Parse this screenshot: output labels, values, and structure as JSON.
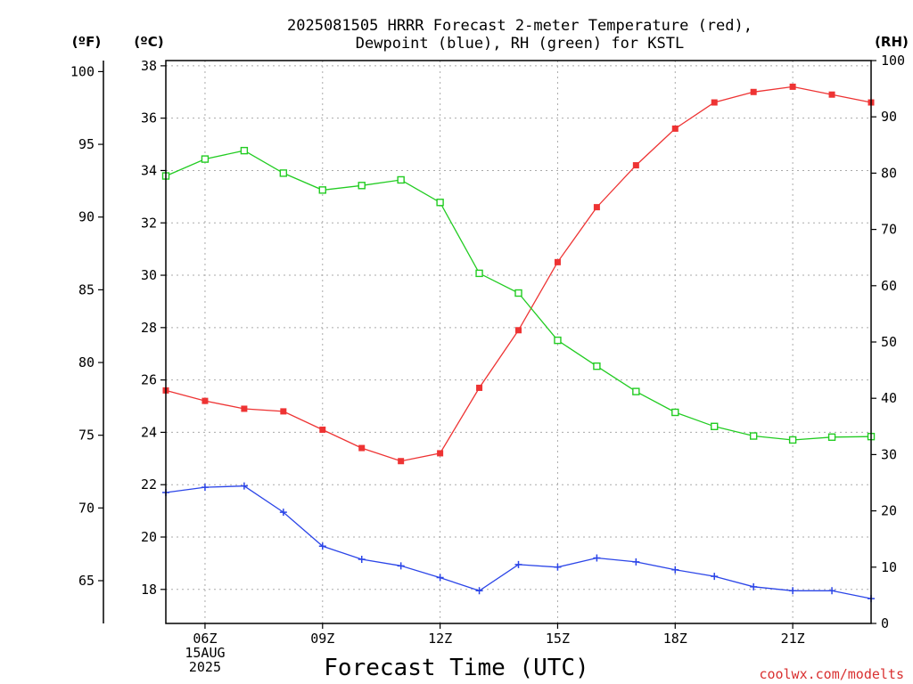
{
  "chart_data": {
    "type": "line",
    "title_lines": [
      "2025081505 HRRR Forecast 2-meter Temperature (red),",
      "Dewpoint (blue), RH (green) for KSTL"
    ],
    "xlabel": "Forecast Time (UTC)",
    "credit": "coolwx.com/modelts",
    "unit_labels": {
      "fahrenheit": "(ºF)",
      "celsius": "(ºC)",
      "rh": "(RH)"
    },
    "x_hours": [
      5,
      6,
      7,
      8,
      9,
      10,
      11,
      12,
      13,
      14,
      15,
      16,
      17,
      18,
      19,
      20,
      21,
      22,
      23
    ],
    "x_ticks": [
      {
        "hour": 6,
        "lines": [
          "06Z",
          "15AUG",
          "2025"
        ]
      },
      {
        "hour": 9,
        "lines": [
          "09Z"
        ]
      },
      {
        "hour": 12,
        "lines": [
          "12Z"
        ]
      },
      {
        "hour": 15,
        "lines": [
          "15Z"
        ]
      },
      {
        "hour": 18,
        "lines": [
          "18Z"
        ]
      },
      {
        "hour": 21,
        "lines": [
          "21Z"
        ]
      }
    ],
    "xlim": [
      5,
      23
    ],
    "y_celsius": {
      "lim": [
        16.7,
        38.2
      ],
      "ticks": [
        18,
        20,
        22,
        24,
        26,
        28,
        30,
        32,
        34,
        36,
        38
      ]
    },
    "y_fahrenheit": {
      "lim": [
        62.06,
        100.76
      ],
      "ticks": [
        65,
        70,
        75,
        80,
        85,
        90,
        95,
        100
      ]
    },
    "y_rh": {
      "lim": [
        0,
        100
      ],
      "ticks": [
        0,
        10,
        20,
        30,
        40,
        50,
        60,
        70,
        80,
        90,
        100
      ]
    },
    "grid": true,
    "series": [
      {
        "name": "Temperature",
        "axis": "celsius",
        "color": "#ee3333",
        "marker": "filled-square",
        "values": [
          25.6,
          25.2,
          24.9,
          24.8,
          24.1,
          23.4,
          22.9,
          23.2,
          25.7,
          27.9,
          30.5,
          32.6,
          34.2,
          35.6,
          36.6,
          37.0,
          37.2,
          36.9,
          36.6
        ]
      },
      {
        "name": "Dewpoint",
        "axis": "celsius",
        "color": "#2b45e8",
        "marker": "plus",
        "values": [
          21.7,
          21.9,
          21.95,
          20.95,
          19.65,
          19.15,
          18.9,
          18.45,
          17.95,
          18.95,
          18.85,
          19.2,
          19.05,
          18.75,
          18.5,
          18.1,
          17.95,
          17.95,
          17.65
        ]
      },
      {
        "name": "RH",
        "axis": "rh",
        "color": "#22cc22",
        "marker": "open-square",
        "values": [
          79.5,
          82.5,
          84.0,
          80.0,
          77.0,
          77.8,
          78.8,
          74.8,
          62.2,
          58.7,
          50.3,
          45.7,
          41.2,
          37.5,
          35.0,
          33.3,
          32.6,
          33.1,
          33.2
        ]
      }
    ]
  }
}
